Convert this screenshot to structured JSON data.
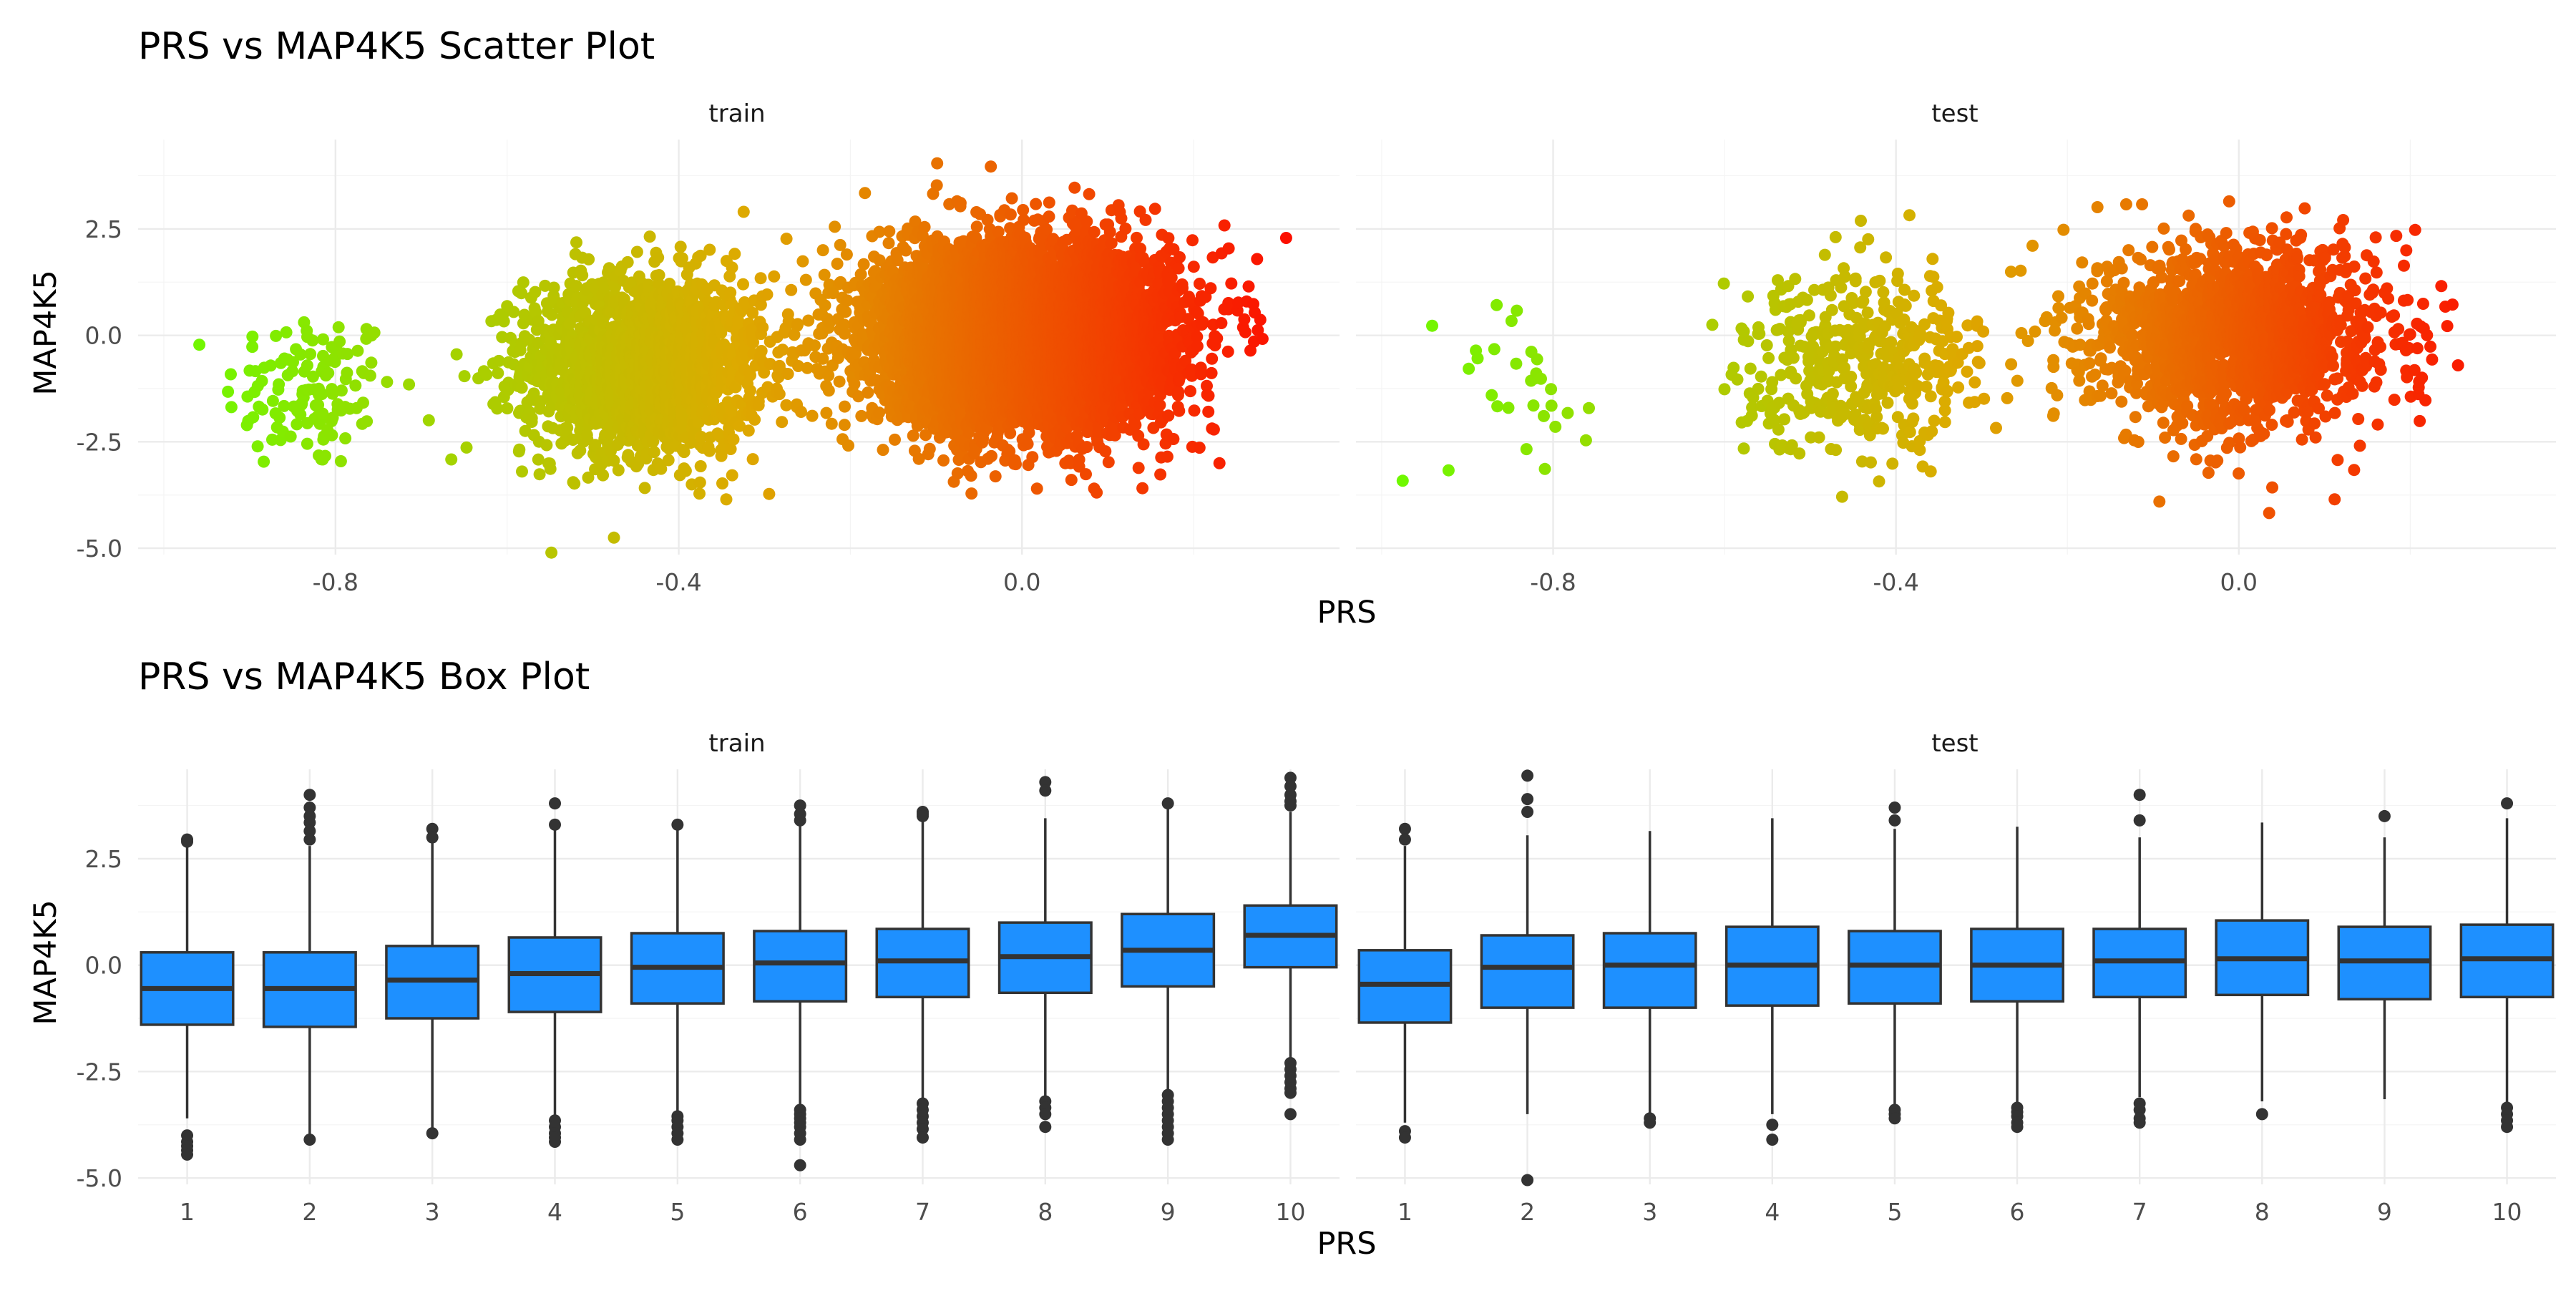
{
  "chart_data": [
    {
      "type": "scatter",
      "title": "PRS vs MAP4K5 Scatter Plot",
      "xlabel": "PRS",
      "ylabel": "MAP4K5",
      "color_scale": {
        "low": "#66ff00",
        "mid": "#ddaa00",
        "high": "#ff0000"
      },
      "panels": [
        {
          "name": "train",
          "xlim": [
            -1.03,
            0.37
          ],
          "ylim": [
            -5.15,
            4.6
          ],
          "x_ticks": [
            -0.8,
            -0.4,
            0.0
          ],
          "x_tick_labels": [
            "-0.8",
            "-0.4",
            "0.0"
          ],
          "y_ticks": [
            -5.0,
            -2.5,
            0.0,
            2.5
          ],
          "y_tick_labels": [
            "-5.0",
            "-2.5",
            "0.0",
            "2.5"
          ],
          "clusters": [
            {
              "x_center": -0.83,
              "x_sd": 0.05,
              "y_center": -1.3,
              "y_sd": 0.95,
              "n": 130
            },
            {
              "x_center": -0.44,
              "x_sd": 0.07,
              "y_center": -0.7,
              "y_sd": 1.05,
              "n": 1800
            },
            {
              "x_center": 0.0,
              "x_sd": 0.085,
              "y_center": 0.0,
              "y_sd": 1.05,
              "n": 6500
            }
          ]
        },
        {
          "name": "test",
          "xlim": [
            -1.03,
            0.37
          ],
          "ylim": [
            -5.15,
            4.6
          ],
          "x_ticks": [
            -0.8,
            -0.4,
            0.0
          ],
          "x_tick_labels": [
            "-0.8",
            "-0.4",
            "0.0"
          ],
          "y_ticks": [
            -5.0,
            -2.5,
            0.0,
            2.5
          ],
          "y_tick_labels": [
            "-5.0",
            "-2.5",
            "0.0",
            "2.5"
          ],
          "clusters": [
            {
              "x_center": -0.83,
              "x_sd": 0.05,
              "y_center": -1.2,
              "y_sd": 1.15,
              "n": 30
            },
            {
              "x_center": -0.44,
              "x_sd": 0.07,
              "y_center": -0.6,
              "y_sd": 1.05,
              "n": 450
            },
            {
              "x_center": 0.0,
              "x_sd": 0.085,
              "y_center": 0.0,
              "y_sd": 1.05,
              "n": 1700
            }
          ]
        }
      ]
    },
    {
      "type": "box",
      "title": "PRS vs MAP4K5 Box Plot",
      "xlabel": "PRS",
      "ylabel": "MAP4K5",
      "box_color": "#1e90ff",
      "panels": [
        {
          "name": "train",
          "ylim": [
            -5.15,
            4.6
          ],
          "y_ticks": [
            -5.0,
            -2.5,
            0.0,
            2.5
          ],
          "y_tick_labels": [
            "-5.0",
            "-2.5",
            "0.0",
            "2.5"
          ],
          "categories": [
            "1",
            "2",
            "3",
            "4",
            "5",
            "6",
            "7",
            "8",
            "9",
            "10"
          ],
          "boxes": [
            {
              "lower": -3.6,
              "q1": -1.4,
              "median": -0.55,
              "q3": 0.3,
              "upper": 2.9,
              "outliers": [
                2.95,
                2.9,
                -4.0,
                -4.15,
                -4.25,
                -4.35,
                -4.45
              ]
            },
            {
              "lower": -4.1,
              "q1": -1.45,
              "median": -0.55,
              "q3": 0.3,
              "upper": 2.8,
              "outliers": [
                4.0,
                3.7,
                3.5,
                3.35,
                3.15,
                2.95,
                -4.1
              ]
            },
            {
              "lower": -3.9,
              "q1": -1.25,
              "median": -0.35,
              "q3": 0.45,
              "upper": 2.95,
              "outliers": [
                3.2,
                3.0,
                -3.95
              ]
            },
            {
              "lower": -3.55,
              "q1": -1.1,
              "median": -0.2,
              "q3": 0.65,
              "upper": 3.2,
              "outliers": [
                3.8,
                3.3,
                -3.65,
                -3.8,
                -3.95,
                -4.05,
                -4.15
              ]
            },
            {
              "lower": -3.45,
              "q1": -0.9,
              "median": -0.05,
              "q3": 0.75,
              "upper": 3.25,
              "outliers": [
                3.3,
                -3.55,
                -3.65,
                -3.8,
                -3.95,
                -4.1
              ]
            },
            {
              "lower": -3.3,
              "q1": -0.85,
              "median": 0.05,
              "q3": 0.8,
              "upper": 3.3,
              "outliers": [
                3.75,
                3.55,
                3.4,
                -3.4,
                -3.5,
                -3.6,
                -3.7,
                -3.8,
                -3.95,
                -4.1,
                -4.7
              ]
            },
            {
              "lower": -3.15,
              "q1": -0.75,
              "median": 0.1,
              "q3": 0.85,
              "upper": 3.45,
              "outliers": [
                3.6,
                3.55,
                3.5,
                -3.25,
                -3.4,
                -3.55,
                -3.7,
                -3.85,
                -4.05
              ]
            },
            {
              "lower": -3.1,
              "q1": -0.65,
              "median": 0.2,
              "q3": 1.0,
              "upper": 3.45,
              "outliers": [
                4.3,
                4.1,
                -3.2,
                -3.35,
                -3.5,
                -3.8
              ]
            },
            {
              "lower": -2.95,
              "q1": -0.5,
              "median": 0.35,
              "q3": 1.2,
              "upper": 3.7,
              "outliers": [
                3.8,
                -3.05,
                -3.2,
                -3.35,
                -3.5,
                -3.65,
                -3.8,
                -3.95,
                -4.1
              ]
            },
            {
              "lower": -2.2,
              "q1": -0.05,
              "median": 0.7,
              "q3": 1.4,
              "upper": 3.6,
              "outliers": [
                4.4,
                4.2,
                4.0,
                3.85,
                3.75,
                -2.3,
                -2.45,
                -2.6,
                -2.75,
                -2.9,
                -3.0,
                -3.5
              ]
            }
          ]
        },
        {
          "name": "test",
          "ylim": [
            -5.15,
            4.6
          ],
          "y_ticks": [
            -5.0,
            -2.5,
            0.0,
            2.5
          ],
          "y_tick_labels": [
            "-5.0",
            "-2.5",
            "0.0",
            "2.5"
          ],
          "categories": [
            "1",
            "2",
            "3",
            "4",
            "5",
            "6",
            "7",
            "8",
            "9",
            "10"
          ],
          "boxes": [
            {
              "lower": -3.7,
              "q1": -1.35,
              "median": -0.45,
              "q3": 0.35,
              "upper": 2.8,
              "outliers": [
                3.2,
                2.95,
                -3.9,
                -4.05
              ]
            },
            {
              "lower": -3.5,
              "q1": -1.0,
              "median": -0.05,
              "q3": 0.7,
              "upper": 3.05,
              "outliers": [
                4.45,
                3.9,
                3.6,
                -5.05
              ]
            },
            {
              "lower": -3.5,
              "q1": -1.0,
              "median": 0.0,
              "q3": 0.75,
              "upper": 3.15,
              "outliers": [
                -3.6,
                -3.7
              ]
            },
            {
              "lower": -3.5,
              "q1": -0.95,
              "median": 0.0,
              "q3": 0.9,
              "upper": 3.45,
              "outliers": [
                -3.75,
                -4.1
              ]
            },
            {
              "lower": -3.3,
              "q1": -0.9,
              "median": 0.0,
              "q3": 0.8,
              "upper": 3.2,
              "outliers": [
                3.7,
                3.4,
                -3.4,
                -3.5,
                -3.6
              ]
            },
            {
              "lower": -3.25,
              "q1": -0.85,
              "median": 0.0,
              "q3": 0.85,
              "upper": 3.25,
              "outliers": [
                -3.35,
                -3.45,
                -3.55,
                -3.7,
                -3.8
              ]
            },
            {
              "lower": -3.1,
              "q1": -0.75,
              "median": 0.1,
              "q3": 0.85,
              "upper": 3.0,
              "outliers": [
                4.0,
                3.4,
                -3.25,
                -3.4,
                -3.6,
                -3.7
              ]
            },
            {
              "lower": -3.2,
              "q1": -0.7,
              "median": 0.15,
              "q3": 1.05,
              "upper": 3.35,
              "outliers": [
                -3.5
              ]
            },
            {
              "lower": -3.15,
              "q1": -0.8,
              "median": 0.1,
              "q3": 0.9,
              "upper": 3.0,
              "outliers": [
                3.5
              ]
            },
            {
              "lower": -3.25,
              "q1": -0.75,
              "median": 0.15,
              "q3": 0.95,
              "upper": 3.45,
              "outliers": [
                3.8,
                -3.35,
                -3.5,
                -3.65,
                -3.8
              ]
            }
          ]
        }
      ]
    }
  ]
}
